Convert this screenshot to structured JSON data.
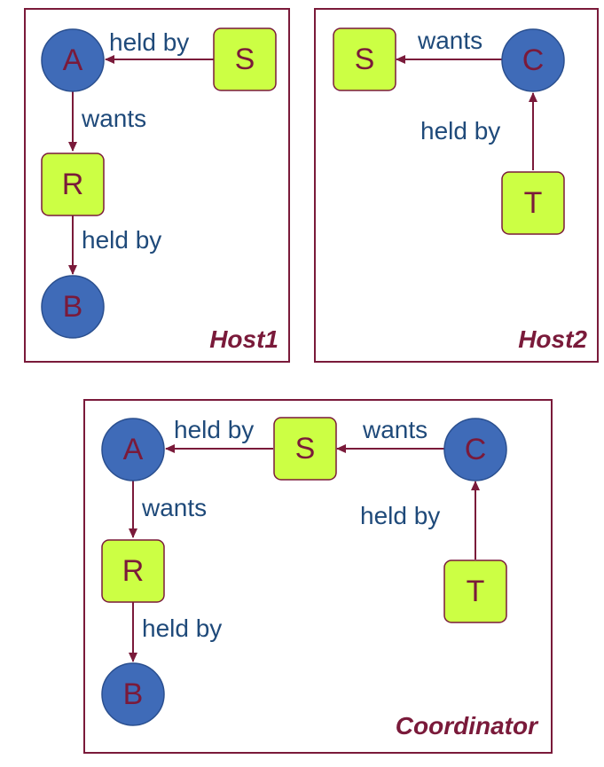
{
  "host1": {
    "title": "Host1",
    "nodes": {
      "A": "A",
      "S": "S",
      "R": "R",
      "B": "B"
    },
    "edges": {
      "s_to_a": "held by",
      "a_to_r": "wants",
      "r_to_b": "held by"
    }
  },
  "host2": {
    "title": "Host2",
    "nodes": {
      "S": "S",
      "C": "C",
      "T": "T"
    },
    "edges": {
      "c_to_s": "wants",
      "t_to_c": "held by"
    }
  },
  "coordinator": {
    "title": "Coordinator",
    "nodes": {
      "A": "A",
      "S": "S",
      "C": "C",
      "R": "R",
      "B": "B",
      "T": "T"
    },
    "edges": {
      "s_to_a": "held by",
      "c_to_s": "wants",
      "a_to_r": "wants",
      "r_to_b": "held by",
      "t_to_c": "held by"
    }
  },
  "colors": {
    "process_fill": "#3f6bb8",
    "resource_fill": "#ccff44",
    "border": "#7a1a3a",
    "edge_label": "#1f4a7a"
  }
}
